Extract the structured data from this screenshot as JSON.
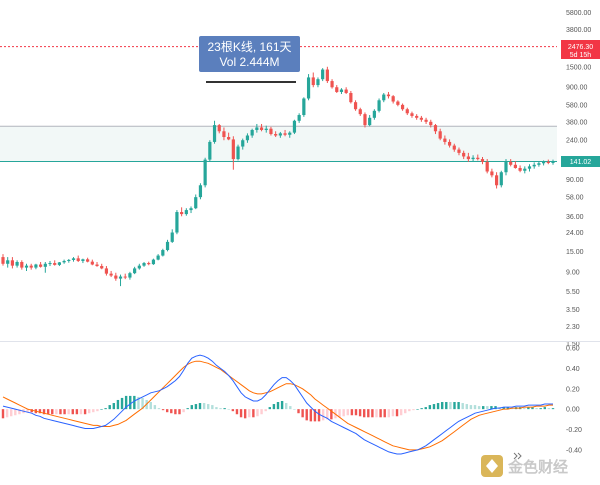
{
  "chart_data": [
    {
      "type": "candlestick",
      "scale": "log",
      "price_axis_ticks": [
        "5800.00",
        "3800.00",
        "1500.00",
        "900.00",
        "580.00",
        "380.00",
        "240.00",
        "150.00",
        "90.00",
        "58.00",
        "36.00",
        "24.00",
        "15.00",
        "9.00",
        "5.50",
        "3.50",
        "2.30",
        "1.50"
      ],
      "ylim": [
        1.45,
        6500
      ],
      "horizontal_lines": [
        {
          "value": 340,
          "color": "#b2b5be"
        },
        {
          "value": 141.02,
          "color": "#26a69a"
        }
      ],
      "highlight_zone": [
        141.02,
        340
      ],
      "alert_line": {
        "value": 2476.3,
        "color": "#f23645"
      },
      "price_tags": [
        {
          "line1": "2476.30",
          "line2": "5d 15h",
          "color": "#f23645"
        },
        {
          "line1": "141.02",
          "line2": "",
          "color": "#26a69a"
        }
      ],
      "measure_tooltip": {
        "line1": "23根K线, 161天",
        "line2": "Vol 2.444M",
        "color": "#5b7fbd"
      },
      "up_color": "#26a69a",
      "down_color": "#ef5350",
      "candles": [
        [
          13,
          14,
          10.5,
          11
        ],
        [
          11,
          13,
          10,
          12
        ],
        [
          12,
          13,
          9.8,
          10.5
        ],
        [
          10.5,
          12,
          10,
          11.5
        ],
        [
          11.5,
          12,
          9.5,
          10
        ],
        [
          10,
          11,
          9.2,
          10.5
        ],
        [
          10.5,
          11,
          9.5,
          10
        ],
        [
          10,
          11,
          9.6,
          10.8
        ],
        [
          10.8,
          11.5,
          10,
          10.2
        ],
        [
          10.2,
          11.5,
          8.8,
          11
        ],
        [
          11,
          11.8,
          10.4,
          11.2
        ],
        [
          11.2,
          12,
          10.5,
          10.7
        ],
        [
          10.7,
          11.5,
          10.4,
          11.4
        ],
        [
          11.4,
          12.2,
          11,
          11.8
        ],
        [
          11.8,
          12.4,
          11.3,
          12.1
        ],
        [
          12.1,
          13,
          11.6,
          12.6
        ],
        [
          12.6,
          13.5,
          11.5,
          11.8
        ],
        [
          11.8,
          12.5,
          11.2,
          12.3
        ],
        [
          12.3,
          12.8,
          11.4,
          11.6
        ],
        [
          11.6,
          12.2,
          10.6,
          10.8
        ],
        [
          10.8,
          11.5,
          10.2,
          10.4
        ],
        [
          10.4,
          11,
          9.6,
          9.8
        ],
        [
          9.8,
          10.4,
          8.2,
          8.6
        ],
        [
          8.6,
          9.2,
          7.9,
          8.2
        ],
        [
          8.2,
          8.8,
          7.2,
          7.6
        ],
        [
          7.6,
          8.4,
          6.3,
          8
        ],
        [
          8,
          8.6,
          7.5,
          7.8
        ],
        [
          7.8,
          9,
          7.4,
          8.7
        ],
        [
          8.7,
          10.2,
          8.5,
          9.8
        ],
        [
          9.8,
          11,
          9.5,
          10.5
        ],
        [
          10.5,
          11.5,
          10.2,
          11.2
        ],
        [
          11.2,
          11.6,
          10.6,
          10.9
        ],
        [
          10.9,
          12.5,
          10.7,
          12.2
        ],
        [
          12.2,
          14,
          12,
          13.5
        ],
        [
          13.5,
          16,
          13.2,
          15.5
        ],
        [
          15.5,
          20,
          15,
          19
        ],
        [
          19,
          26,
          18.5,
          24
        ],
        [
          24,
          42,
          23,
          40
        ],
        [
          40,
          45,
          36,
          38
        ],
        [
          38,
          44,
          36.5,
          42
        ],
        [
          42,
          46,
          39,
          44
        ],
        [
          44,
          62,
          43,
          58
        ],
        [
          58,
          82,
          55,
          78
        ],
        [
          78,
          155,
          74,
          148
        ],
        [
          148,
          240,
          140,
          230
        ],
        [
          230,
          390,
          220,
          350
        ],
        [
          350,
          360,
          285,
          300
        ],
        [
          300,
          330,
          240,
          260
        ],
        [
          260,
          290,
          240,
          245
        ],
        [
          245,
          265,
          115,
          150
        ],
        [
          150,
          215,
          145,
          205
        ],
        [
          205,
          250,
          190,
          240
        ],
        [
          240,
          285,
          225,
          270
        ],
        [
          270,
          320,
          255,
          310
        ],
        [
          310,
          360,
          290,
          330
        ],
        [
          330,
          360,
          300,
          310
        ],
        [
          310,
          345,
          290,
          320
        ],
        [
          320,
          335,
          270,
          280
        ],
        [
          280,
          300,
          260,
          270
        ],
        [
          270,
          295,
          255,
          285
        ],
        [
          285,
          310,
          265,
          275
        ],
        [
          275,
          300,
          255,
          290
        ],
        [
          290,
          400,
          280,
          390
        ],
        [
          390,
          470,
          370,
          450
        ],
        [
          450,
          700,
          430,
          680
        ],
        [
          680,
          1250,
          650,
          1150
        ],
        [
          1150,
          1300,
          900,
          950
        ],
        [
          950,
          1150,
          900,
          1100
        ],
        [
          1100,
          1450,
          1050,
          1400
        ],
        [
          1400,
          1500,
          1000,
          1050
        ],
        [
          1050,
          1100,
          870,
          900
        ],
        [
          900,
          950,
          780,
          800
        ],
        [
          800,
          880,
          760,
          850
        ],
        [
          850,
          900,
          760,
          780
        ],
        [
          780,
          820,
          600,
          620
        ],
        [
          620,
          650,
          500,
          520
        ],
        [
          520,
          540,
          440,
          460
        ],
        [
          460,
          480,
          330,
          350
        ],
        [
          350,
          450,
          340,
          420
        ],
        [
          420,
          520,
          400,
          500
        ],
        [
          500,
          680,
          480,
          650
        ],
        [
          650,
          780,
          620,
          750
        ],
        [
          750,
          800,
          680,
          720
        ],
        [
          720,
          740,
          600,
          630
        ],
        [
          630,
          650,
          560,
          580
        ],
        [
          580,
          600,
          500,
          520
        ],
        [
          520,
          540,
          450,
          470
        ],
        [
          470,
          490,
          420,
          440
        ],
        [
          440,
          460,
          400,
          420
        ],
        [
          420,
          440,
          380,
          400
        ],
        [
          400,
          420,
          360,
          380
        ],
        [
          380,
          400,
          330,
          350
        ],
        [
          350,
          360,
          280,
          300
        ],
        [
          300,
          320,
          240,
          250
        ],
        [
          250,
          270,
          215,
          230
        ],
        [
          230,
          245,
          200,
          210
        ],
        [
          210,
          220,
          180,
          190
        ],
        [
          190,
          200,
          165,
          175
        ],
        [
          175,
          185,
          150,
          160
        ],
        [
          160,
          175,
          140,
          150
        ],
        [
          150,
          165,
          142,
          155
        ],
        [
          155,
          168,
          145,
          150
        ],
        [
          150,
          158,
          132,
          140
        ],
        [
          140,
          150,
          105,
          110
        ],
        [
          110,
          118,
          95,
          100
        ],
        [
          100,
          108,
          72,
          78
        ],
        [
          78,
          112,
          74,
          108
        ],
        [
          108,
          150,
          100,
          140
        ],
        [
          140,
          150,
          125,
          130
        ],
        [
          130,
          142,
          118,
          120
        ],
        [
          120,
          128,
          108,
          112
        ],
        [
          112,
          125,
          105,
          118
        ],
        [
          118,
          132,
          110,
          125
        ],
        [
          125,
          138,
          118,
          130
        ],
        [
          130,
          142,
          124,
          135
        ],
        [
          135,
          145,
          128,
          140
        ],
        [
          140,
          148,
          132,
          136
        ],
        [
          136,
          148,
          130,
          141.02
        ]
      ]
    },
    {
      "type": "macd",
      "axis_ticks": [
        "0.60",
        "0.40",
        "0.20",
        "0.00",
        "-0.20",
        "-0.40"
      ],
      "ylim": [
        -0.45,
        0.6
      ],
      "macd_color": "#2962ff",
      "signal_color": "#ff6d00",
      "hist_colors": {
        "pos_strong": "#26a69a",
        "pos_weak": "#b2dfdb",
        "neg_strong": "#ef5350",
        "neg_weak": "#ffcdd2"
      },
      "macd": [
        0.03,
        0.02,
        0.01,
        0.0,
        -0.01,
        -0.02,
        -0.03,
        -0.04,
        -0.06,
        -0.07,
        -0.09,
        -0.1,
        -0.11,
        -0.12,
        -0.13,
        -0.14,
        -0.15,
        -0.16,
        -0.17,
        -0.18,
        -0.19,
        -0.19,
        -0.19,
        -0.18,
        -0.17,
        -0.16,
        -0.13,
        -0.1,
        -0.06,
        -0.02,
        0.02,
        0.05,
        0.08,
        0.1,
        0.12,
        0.14,
        0.16,
        0.17,
        0.18,
        0.2,
        0.22,
        0.25,
        0.28,
        0.32,
        0.38,
        0.45,
        0.5,
        0.52,
        0.53,
        0.52,
        0.5,
        0.47,
        0.43,
        0.4,
        0.37,
        0.33,
        0.28,
        0.22,
        0.16,
        0.12,
        0.1,
        0.08,
        0.08,
        0.1,
        0.14,
        0.19,
        0.24,
        0.28,
        0.31,
        0.31,
        0.28,
        0.24,
        0.18,
        0.12,
        0.06,
        0.02,
        -0.02,
        -0.05,
        -0.07,
        -0.09,
        -0.12,
        -0.14,
        -0.16,
        -0.18,
        -0.2,
        -0.22,
        -0.24,
        -0.27,
        -0.3,
        -0.32,
        -0.34,
        -0.36,
        -0.38,
        -0.4,
        -0.42,
        -0.43,
        -0.44,
        -0.44,
        -0.43,
        -0.42,
        -0.41,
        -0.4,
        -0.38,
        -0.36,
        -0.33,
        -0.3,
        -0.27,
        -0.24,
        -0.21,
        -0.18,
        -0.15,
        -0.12,
        -0.1,
        -0.08,
        -0.06,
        -0.04,
        -0.03,
        -0.02,
        -0.01,
        0.0,
        0.01,
        0.01,
        0.02,
        0.02,
        0.02,
        0.03,
        0.03,
        0.03,
        0.04,
        0.04,
        0.04,
        0.04,
        0.05,
        0.05,
        0.05
      ],
      "signal": [
        0.12,
        0.1,
        0.08,
        0.06,
        0.04,
        0.02,
        0.0,
        -0.01,
        -0.02,
        -0.03,
        -0.04,
        -0.05,
        -0.06,
        -0.07,
        -0.08,
        -0.09,
        -0.1,
        -0.11,
        -0.12,
        -0.13,
        -0.14,
        -0.15,
        -0.16,
        -0.16,
        -0.17,
        -0.17,
        -0.17,
        -0.16,
        -0.15,
        -0.13,
        -0.11,
        -0.08,
        -0.05,
        -0.02,
        0.01,
        0.05,
        0.09,
        0.13,
        0.17,
        0.21,
        0.25,
        0.29,
        0.33,
        0.37,
        0.41,
        0.44,
        0.46,
        0.47,
        0.47,
        0.46,
        0.45,
        0.43,
        0.41,
        0.39,
        0.36,
        0.33,
        0.3,
        0.27,
        0.24,
        0.21,
        0.18,
        0.16,
        0.15,
        0.15,
        0.16,
        0.17,
        0.19,
        0.21,
        0.23,
        0.25,
        0.25,
        0.24,
        0.22,
        0.2,
        0.17,
        0.14,
        0.1,
        0.07,
        0.04,
        0.01,
        -0.02,
        -0.05,
        -0.08,
        -0.11,
        -0.14,
        -0.16,
        -0.18,
        -0.2,
        -0.22,
        -0.24,
        -0.26,
        -0.28,
        -0.3,
        -0.32,
        -0.34,
        -0.36,
        -0.37,
        -0.38,
        -0.39,
        -0.4,
        -0.4,
        -0.4,
        -0.39,
        -0.38,
        -0.37,
        -0.35,
        -0.33,
        -0.31,
        -0.28,
        -0.25,
        -0.22,
        -0.19,
        -0.16,
        -0.13,
        -0.1,
        -0.08,
        -0.06,
        -0.05,
        -0.04,
        -0.03,
        -0.02,
        -0.01,
        0.0,
        0.0,
        0.01,
        0.01,
        0.01,
        0.02,
        0.02,
        0.02,
        0.03,
        0.03,
        0.03,
        0.04,
        0.04
      ]
    }
  ],
  "watermark": {
    "text": "金色财经"
  },
  "icons": {
    "scroll_to_latest": "double-chevron-right-icon",
    "watermark_logo": "jinse-logo-icon"
  }
}
